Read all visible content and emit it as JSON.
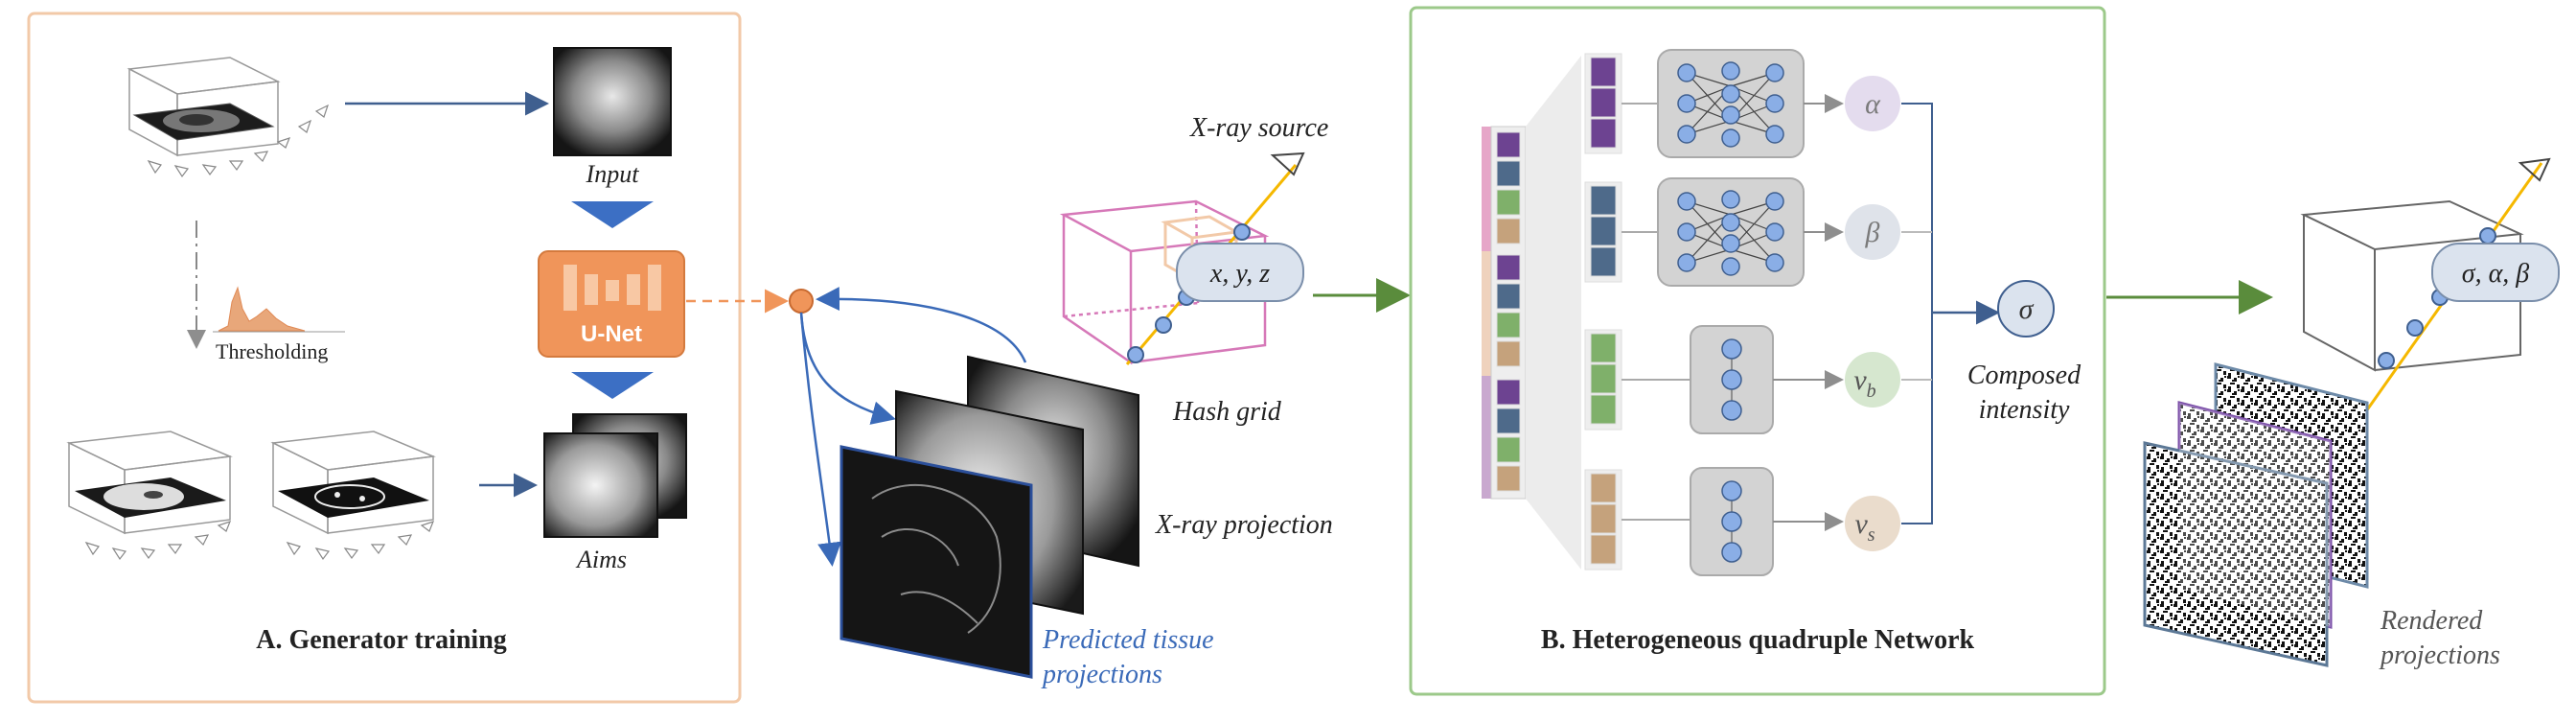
{
  "panel_a": {
    "title": "A. Generator training",
    "input_label": "Input",
    "aims_label": "Aims",
    "thresholding_label": "Thresholding",
    "unet_label": "U-Net"
  },
  "middle": {
    "xray_source_label": "X-ray source",
    "coord_label": "x, y, z",
    "hash_grid_label": "Hash grid",
    "xray_projection_label": "X-ray projection",
    "predicted_label_line1": "Predicted tissue",
    "predicted_label_line2": "projections"
  },
  "panel_b": {
    "title": "B. Heterogeneous quadruple Network",
    "outputs": [
      {
        "symbol": "α",
        "color": "#e4dcee"
      },
      {
        "symbol": "β",
        "color": "#dfe3ea"
      },
      {
        "symbol": "v",
        "sub": "b",
        "color": "#d6e7cf"
      },
      {
        "symbol": "v",
        "sub": "s",
        "color": "#eadccc"
      }
    ],
    "sigma_symbol": "σ",
    "composed_line1": "Composed",
    "composed_line2": "intensity"
  },
  "right": {
    "sigma_label": "σ, α, β",
    "rendered_line1": "Rendered",
    "rendered_line2": "projections"
  },
  "colors": {
    "panel_a_border": "#f2c9a8",
    "panel_b_border": "#9cc98a",
    "unet": "#f0955a",
    "arrow_blue": "#3f5f8f",
    "triangle_blue": "#3c6fc4",
    "green_arrow": "#5a8c3c",
    "pink_cube": "#d678b8",
    "node_blue": "#8aaee6",
    "purple": "#6d4391",
    "slate": "#4e6a8a",
    "green": "#7fb06a",
    "tan": "#c5a27c"
  }
}
